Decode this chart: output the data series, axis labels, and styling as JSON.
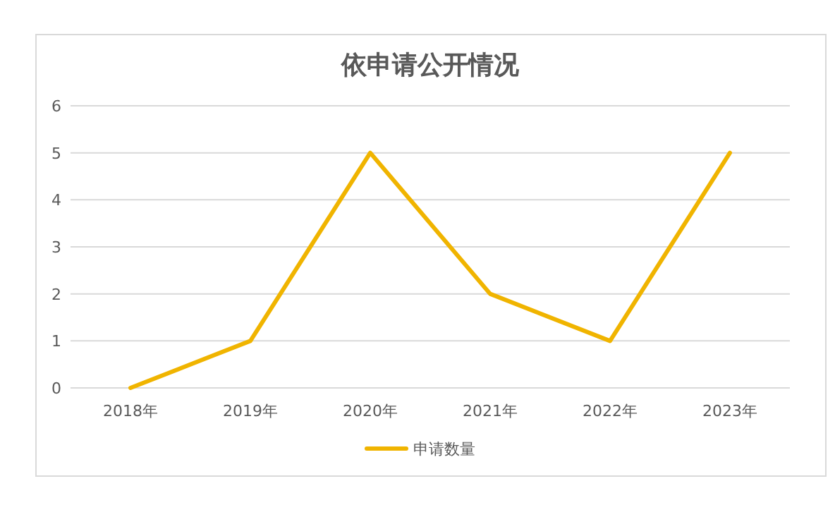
{
  "chart_data": {
    "type": "line",
    "title": "依申请公开情况",
    "categories": [
      "2018年",
      "2019年",
      "2020年",
      "2021年",
      "2022年",
      "2023年"
    ],
    "series": [
      {
        "name": "申请数量",
        "color": "#f0b400",
        "values": [
          0,
          1,
          5,
          2,
          1,
          5
        ]
      }
    ],
    "ylim": [
      0,
      6
    ],
    "yticks": [
      0,
      1,
      2,
      3,
      4,
      5,
      6
    ],
    "grid": "y",
    "legend": "bottom"
  }
}
